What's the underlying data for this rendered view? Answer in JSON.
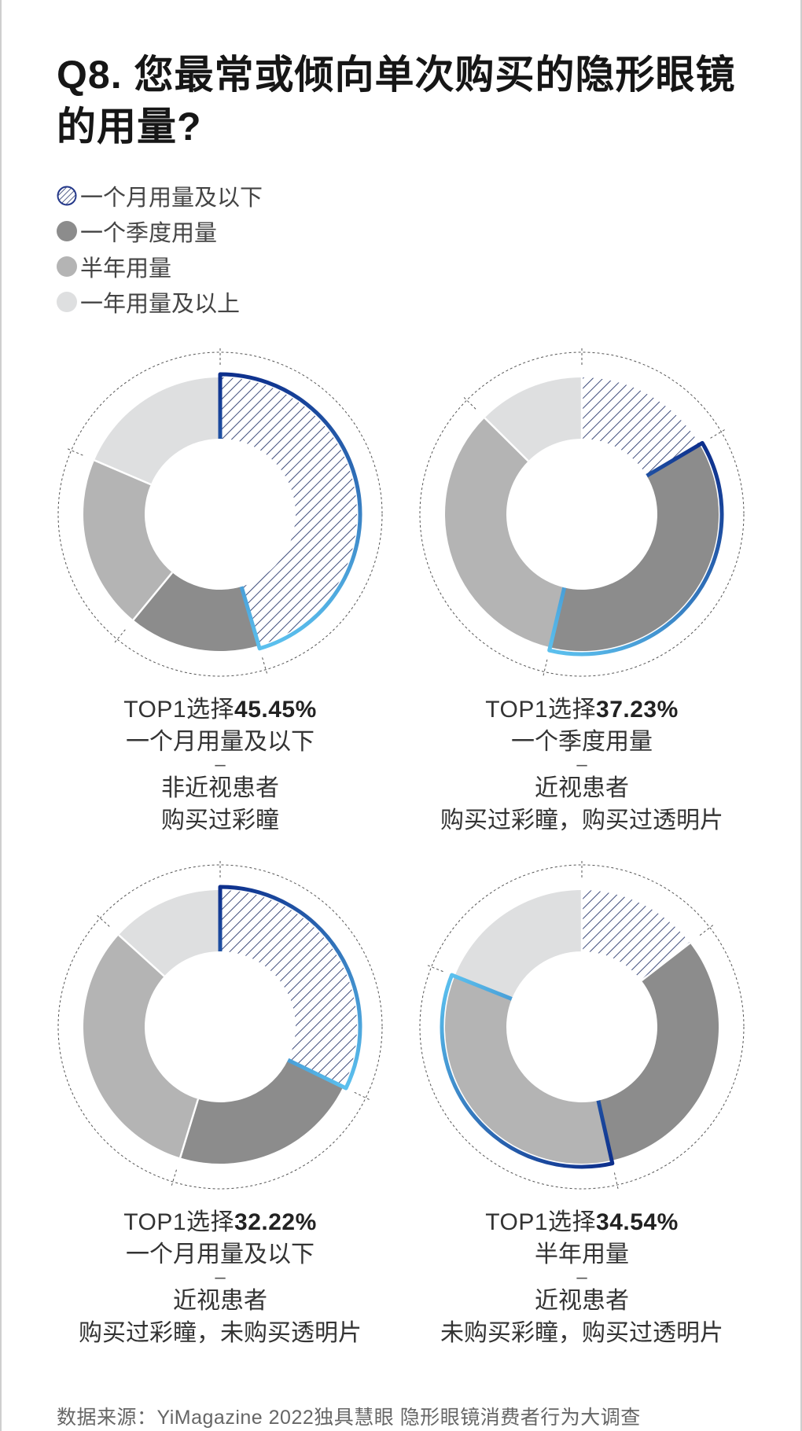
{
  "title": "Q8. 您最常或倾向单次购买的隐形眼镜的用量?",
  "legend": [
    {
      "label": "一个月用量及以下",
      "color": "hatch-navy"
    },
    {
      "label": "一个季度用量",
      "color": "#8c8c8c"
    },
    {
      "label": "半年用量",
      "color": "#b4b4b4"
    },
    {
      "label": "一年用量及以上",
      "color": "#dedfe0"
    }
  ],
  "colors": {
    "hatch_line": "#2a3a6e",
    "quarter": "#8c8c8c",
    "half_year": "#b4b4b4",
    "year": "#dedfe0",
    "highlight_start": "#0d2f8c",
    "highlight_end": "#5bc0ee"
  },
  "chart_data": [
    {
      "type": "pie",
      "donut": true,
      "categories": [
        "一个月用量及以下",
        "一个季度用量",
        "半年用量",
        "一年用量及以上"
      ],
      "values": [
        45.45,
        15.5,
        20.5,
        18.55
      ],
      "highlight": 0,
      "top_label": "TOP1选择",
      "top_pct": "45.45%",
      "top_option": "一个月用量及以下",
      "dash": "–",
      "group": "非近视患者",
      "purchase": "购买过彩瞳"
    },
    {
      "type": "pie",
      "donut": true,
      "categories": [
        "一个月用量及以下",
        "一个季度用量",
        "半年用量",
        "一年用量及以上"
      ],
      "values": [
        16.5,
        37.23,
        33.7,
        12.57
      ],
      "highlight": 1,
      "top_label": "TOP1选择",
      "top_pct": "37.23%",
      "top_option": "一个季度用量",
      "dash": "–",
      "group": "近视患者",
      "purchase": "购买过彩瞳，购买过透明片"
    },
    {
      "type": "pie",
      "donut": true,
      "categories": [
        "一个月用量及以下",
        "一个季度用量",
        "半年用量",
        "一年用量及以上"
      ],
      "values": [
        32.22,
        22.5,
        32.0,
        13.28
      ],
      "highlight": 0,
      "top_label": "TOP1选择",
      "top_pct": "32.22%",
      "top_option": "一个月用量及以下",
      "dash": "–",
      "group": "近视患者",
      "purchase": "购买过彩瞳，未购买透明片"
    },
    {
      "type": "pie",
      "donut": true,
      "categories": [
        "一个月用量及以下",
        "一个季度用量",
        "半年用量",
        "一年用量及以上"
      ],
      "values": [
        14.5,
        32.0,
        34.54,
        18.96
      ],
      "highlight": 2,
      "top_label": "TOP1选择",
      "top_pct": "34.54%",
      "top_option": "半年用量",
      "dash": "–",
      "group": "近视患者",
      "purchase": "未购买彩瞳，购买过透明片"
    }
  ],
  "source": "数据来源：YiMagazine 2022独具慧眼 隐形眼镜消费者行为大调查"
}
